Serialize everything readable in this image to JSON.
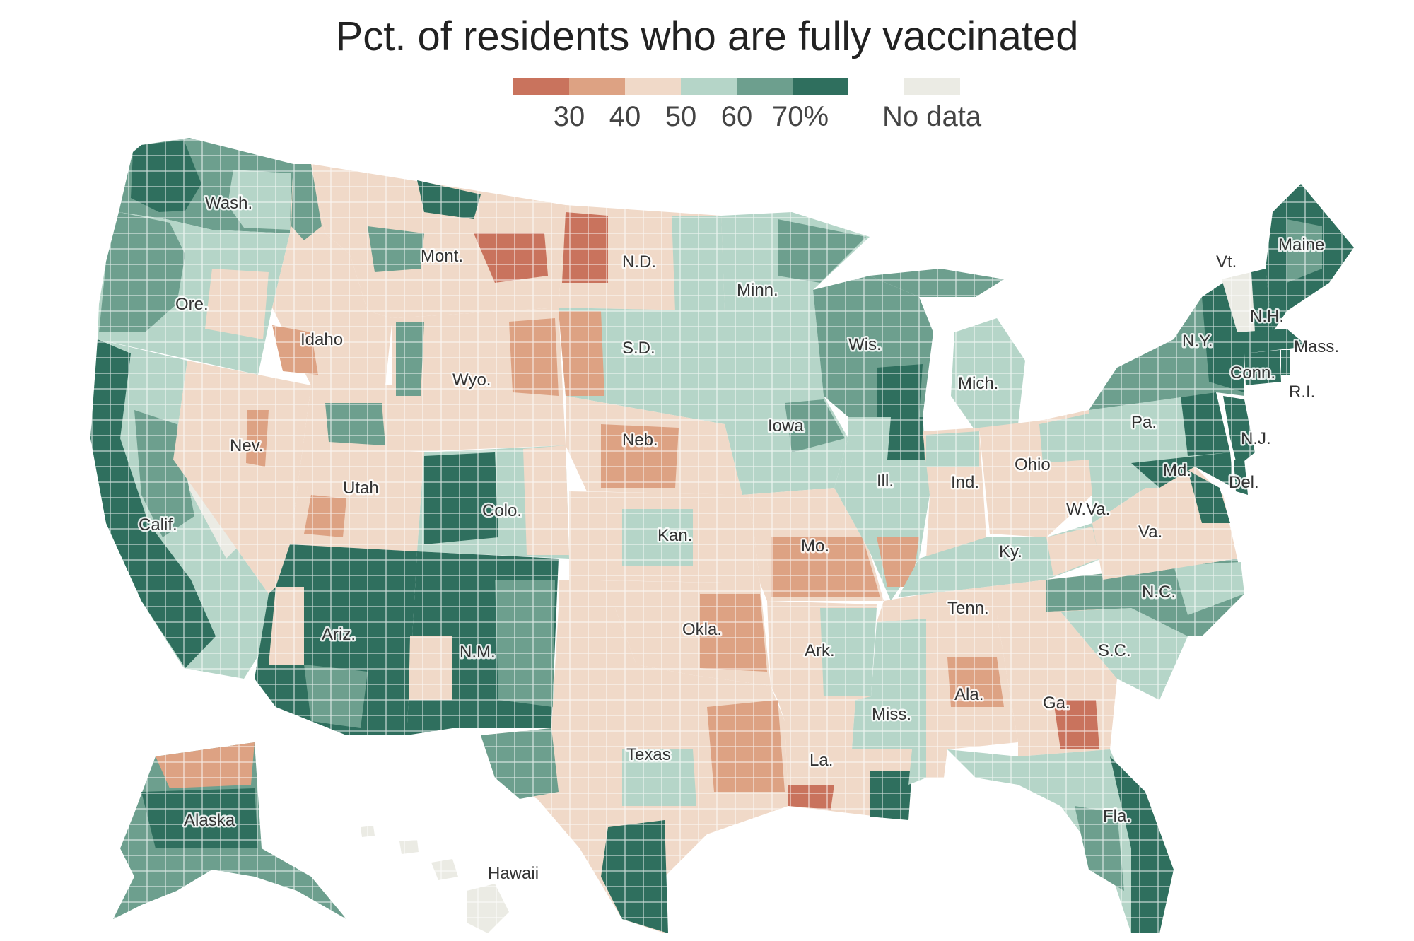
{
  "title": "Pct. of residents who are fully vaccinated",
  "legend": {
    "bins": [
      {
        "label": "",
        "color": "#c9735d"
      },
      {
        "label": "30",
        "color": "#dda283"
      },
      {
        "label": "40",
        "color": "#f0d9c8"
      },
      {
        "label": "50",
        "color": "#b5d5c8"
      },
      {
        "label": "60",
        "color": "#6d9f8e"
      },
      {
        "label": "70%",
        "color": "#2f6f5e"
      }
    ],
    "no_data_label": "No data",
    "no_data_color": "#ebebe4"
  },
  "map": {
    "state_labels": [
      "Wash.",
      "Ore.",
      "Calif.",
      "Nev.",
      "Idaho",
      "Mont.",
      "Wyo.",
      "Utah",
      "Colo.",
      "Ariz.",
      "N.M.",
      "N.D.",
      "S.D.",
      "Neb.",
      "Kan.",
      "Okla.",
      "Texas",
      "Minn.",
      "Iowa",
      "Mo.",
      "Ark.",
      "La.",
      "Wis.",
      "Ill.",
      "Mich.",
      "Ind.",
      "Ohio",
      "Ky.",
      "Tenn.",
      "Miss.",
      "Ala.",
      "Ga.",
      "Fla.",
      "S.C.",
      "N.C.",
      "Va.",
      "W.Va.",
      "Pa.",
      "Md.",
      "Del.",
      "N.J.",
      "N.Y.",
      "Conn.",
      "R.I.",
      "Mass.",
      "Vt.",
      "N.H.",
      "Maine",
      "Alaska",
      "Hawaii"
    ],
    "colors": {
      "border": "#ffffff",
      "very_low": "#c9735d",
      "low": "#dda283",
      "mid_low": "#f0d9c8",
      "mid_high": "#b5d5c8",
      "high": "#6d9f8e",
      "very_high": "#2f6f5e",
      "no_data": "#ebebe4"
    }
  }
}
